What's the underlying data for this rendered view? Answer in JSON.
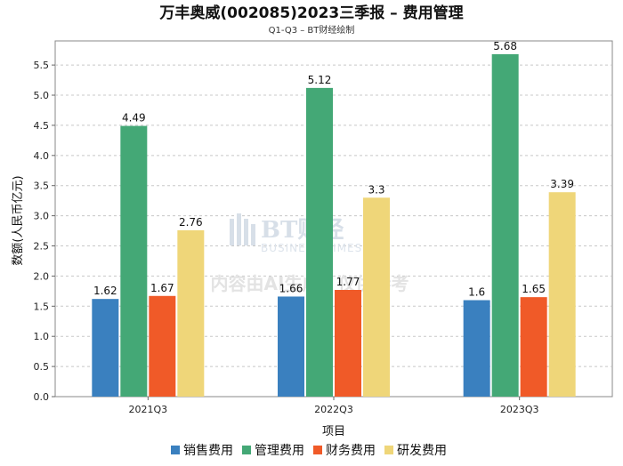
{
  "chart_data": {
    "type": "bar",
    "title": "万丰奥威(002085)2023三季报 – 费用管理",
    "subtitle": "Q1-Q3 – BT财经绘制",
    "xlabel": "项目",
    "ylabel": "数额(人民币亿元)",
    "categories": [
      "2021Q3",
      "2022Q3",
      "2023Q3"
    ],
    "ylim": [
      0,
      5.9
    ],
    "yticks": [
      0.0,
      0.5,
      1.0,
      1.5,
      2.0,
      2.5,
      3.0,
      3.5,
      4.0,
      4.5,
      5.0,
      5.5
    ],
    "ytick_labels": [
      "0.0",
      "0.5",
      "1.0",
      "1.5",
      "2.0",
      "2.5",
      "3.0",
      "3.5",
      "4.0",
      "4.5",
      "5.0",
      "5.5"
    ],
    "grid": true,
    "legend": "bottom",
    "series": [
      {
        "name": "销售费用",
        "color": "#3a80bf",
        "values": [
          1.62,
          1.66,
          1.6
        ],
        "labels": [
          "1.62",
          "1.66",
          "1.6"
        ]
      },
      {
        "name": "管理费用",
        "color": "#44a876",
        "values": [
          4.49,
          5.12,
          5.68
        ],
        "labels": [
          "4.49",
          "5.12",
          "5.68"
        ]
      },
      {
        "name": "财务费用",
        "color": "#f05a28",
        "values": [
          1.67,
          1.77,
          1.65
        ],
        "labels": [
          "1.67",
          "1.77",
          "1.65"
        ]
      },
      {
        "name": "研发费用",
        "color": "#efd679",
        "values": [
          2.76,
          3.3,
          3.39
        ],
        "labels": [
          "2.76",
          "3.3",
          "3.39"
        ]
      }
    ]
  },
  "watermark": {
    "brand": "BT财经",
    "brand_en": "BUSINESS TIMES",
    "notice": "内容由AI生成，仅供参考"
  }
}
